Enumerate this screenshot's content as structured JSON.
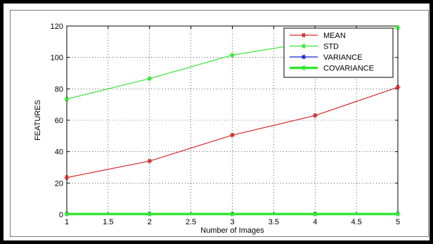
{
  "chart_data": {
    "type": "line",
    "xlabel": "Number of Images",
    "ylabel": "FEATURES",
    "xlim": [
      1,
      5
    ],
    "ylim": [
      0,
      120
    ],
    "x_ticks": [
      1,
      1.5,
      2,
      2.5,
      3,
      3.5,
      4,
      4.5,
      5
    ],
    "x_tick_labels": [
      "1",
      "1.5",
      "2",
      "2.5",
      "3",
      "3.5",
      "4",
      "4.5",
      "5"
    ],
    "y_ticks": [
      0,
      20,
      40,
      60,
      80,
      100,
      120
    ],
    "y_tick_labels": [
      "0",
      "20",
      "40",
      "60",
      "80",
      "100",
      "120"
    ],
    "grid": true,
    "grid_style": "dotted",
    "legend_position": "top-right",
    "x": [
      1,
      2,
      3,
      4,
      5
    ],
    "series": [
      {
        "name": "MEAN",
        "values": [
          23.5,
          34,
          50.5,
          63,
          81
        ],
        "color": "#d42a2a",
        "marker": "star",
        "line_width": 1.2
      },
      {
        "name": "STD",
        "values": [
          73.5,
          86.5,
          101.5,
          110,
          119
        ],
        "color": "#33e633",
        "marker": "star",
        "line_width": 1.2
      },
      {
        "name": "VARIANCE",
        "values": [
          0.3,
          0.3,
          0.3,
          0.3,
          0.3
        ],
        "color": "#1020c8",
        "marker": "star",
        "line_width": 1.2
      },
      {
        "name": "COVARIANCE",
        "values": [
          0.3,
          0.3,
          0.3,
          0.3,
          0.3
        ],
        "color": "#33e633",
        "marker": "star",
        "line_width": 3.5
      }
    ]
  }
}
